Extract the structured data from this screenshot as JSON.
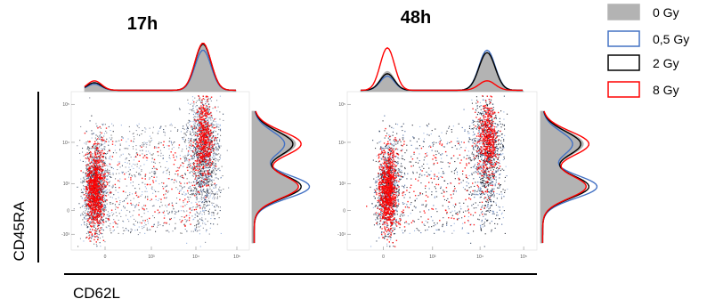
{
  "chart_data": [
    {
      "type": "scatter",
      "title": "17h",
      "x_scale": "biexponential",
      "y_scale": "biexponential",
      "x_ticks": [
        "0",
        "10³",
        "10⁴",
        "10⁵"
      ],
      "y_ticks": [
        "-10³",
        "0",
        "10³",
        "10⁴",
        "10⁵"
      ],
      "series": [
        {
          "name": "0 Gy",
          "color": "#999999"
        },
        {
          "name": "0,5 Gy",
          "color": "#4472c4"
        },
        {
          "name": "2 Gy",
          "color": "#000000"
        },
        {
          "name": "8 Gy",
          "color": "#ff0000"
        }
      ],
      "x_histogram_peaks": {
        "low": 0,
        "high": 10000
      },
      "y_histogram_peaks": {
        "low": 600,
        "high": 12000
      }
    },
    {
      "type": "scatter",
      "title": "48h",
      "x_scale": "biexponential",
      "y_scale": "biexponential",
      "x_ticks": [
        "0",
        "10³",
        "10⁴",
        "10⁵"
      ],
      "y_ticks": [
        "-10³",
        "0",
        "10³",
        "10⁴",
        "10⁵"
      ],
      "series": [
        {
          "name": "0 Gy",
          "color": "#999999"
        },
        {
          "name": "0,5 Gy",
          "color": "#4472c4"
        },
        {
          "name": "2 Gy",
          "color": "#000000"
        },
        {
          "name": "8 Gy",
          "color": "#ff0000"
        }
      ],
      "x_histogram_peaks": {
        "low": 0,
        "high": 10000
      },
      "y_histogram_peaks": {
        "low": 600,
        "high": 12000
      }
    }
  ],
  "axes": {
    "x_label": "CD62L",
    "y_label": "CD45RA"
  },
  "legend": {
    "placement": "top-right",
    "entries": [
      {
        "label": "0 Gy",
        "style": "filled",
        "color": "#b3b3b3"
      },
      {
        "label": "0,5 Gy",
        "style": "outline",
        "color": "#4472c4"
      },
      {
        "label": "2 Gy",
        "style": "outline",
        "color": "#000000"
      },
      {
        "label": "8 Gy",
        "style": "outline",
        "color": "#ff0000"
      }
    ]
  }
}
